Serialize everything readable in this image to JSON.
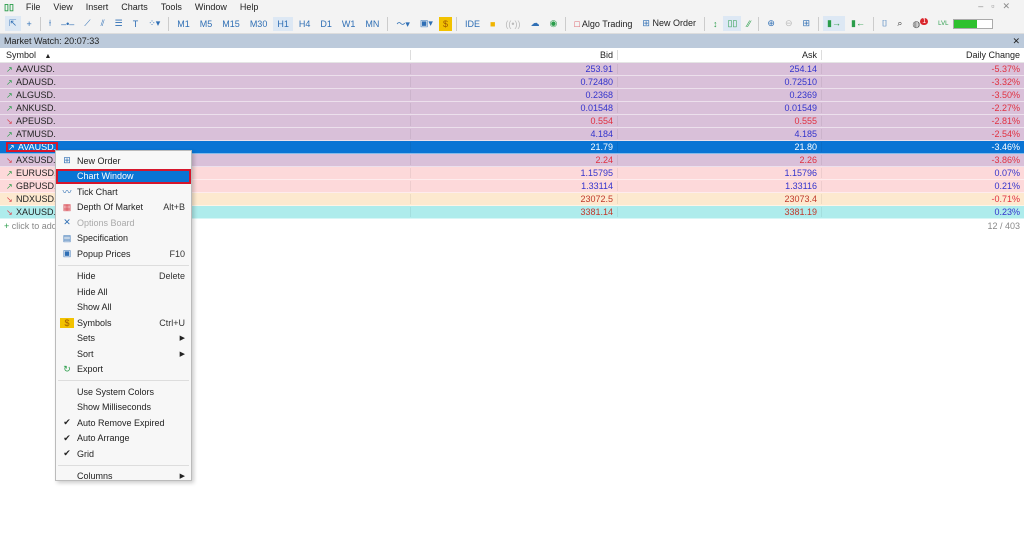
{
  "menu": [
    "File",
    "View",
    "Insert",
    "Charts",
    "Tools",
    "Window",
    "Help"
  ],
  "toolbar": {
    "timeframes": [
      "M1",
      "M5",
      "M15",
      "M30",
      "H1",
      "H4",
      "D1",
      "W1",
      "MN"
    ],
    "active_timeframe": "H1",
    "ide": "IDE",
    "algo_trading": "Algo Trading",
    "new_order": "New Order",
    "notification_count": "1",
    "lvl": "LVL"
  },
  "market_watch": {
    "title": "Market Watch: 20:07:33",
    "columns": [
      "Symbol",
      "Bid",
      "Ask",
      "Daily Change"
    ],
    "rows": [
      {
        "symbol": "AAVUSD.",
        "dir": "up",
        "bid": "253.91",
        "ask": "254.14",
        "change": "-5.37%",
        "bg": "#d9c0d9",
        "pcolor": "blue"
      },
      {
        "symbol": "ADAUSD.",
        "dir": "up",
        "bid": "0.72480",
        "ask": "0.72510",
        "change": "-3.32%",
        "bg": "#d9c0d9",
        "pcolor": "blue"
      },
      {
        "symbol": "ALGUSD.",
        "dir": "up",
        "bid": "0.2368",
        "ask": "0.2369",
        "change": "-3.50%",
        "bg": "#d9c0d9",
        "pcolor": "blue"
      },
      {
        "symbol": "ANKUSD.",
        "dir": "up",
        "bid": "0.01548",
        "ask": "0.01549",
        "change": "-2.27%",
        "bg": "#d9c0d9",
        "pcolor": "blue"
      },
      {
        "symbol": "APEUSD.",
        "dir": "down",
        "bid": "0.554",
        "ask": "0.555",
        "change": "-2.81%",
        "bg": "#d9c0d9",
        "pcolor": "red"
      },
      {
        "symbol": "ATMUSD.",
        "dir": "up",
        "bid": "4.184",
        "ask": "4.185",
        "change": "-2.54%",
        "bg": "#d9c0d9",
        "pcolor": "blue"
      },
      {
        "symbol": "AVAUSD.",
        "dir": "up",
        "bid": "21.79",
        "ask": "21.80",
        "change": "-3.46%",
        "bg": "#0a74d4",
        "pcolor": "blue",
        "selected": true
      },
      {
        "symbol": "AXSUSD.",
        "dir": "down",
        "bid": "2.24",
        "ask": "2.26",
        "change": "-3.86%",
        "bg": "#d9c0d9",
        "pcolor": "red"
      },
      {
        "symbol": "EURUSD.",
        "dir": "up",
        "bid": "1.15795",
        "ask": "1.15796",
        "change": "0.07%",
        "bg": "#fdd9da",
        "pcolor": "blue"
      },
      {
        "symbol": "GBPUSD.",
        "dir": "up",
        "bid": "1.33114",
        "ask": "1.33116",
        "change": "0.21%",
        "bg": "#fdd9da",
        "pcolor": "blue"
      },
      {
        "symbol": "NDXUSD.",
        "dir": "down",
        "bid": "23072.5",
        "ask": "23073.4",
        "change": "-0.71%",
        "bg": "#fde9cf",
        "pcolor": "brown"
      },
      {
        "symbol": "XAUUSD.",
        "dir": "down",
        "bid": "3381.14",
        "ask": "3381.19",
        "change": "0.23%",
        "bg": "#aeecec",
        "pcolor": "brown"
      }
    ],
    "add_placeholder": "click to add",
    "count": "12 / 403"
  },
  "context_menu": [
    {
      "label": "New Order",
      "icon": "new-order",
      "glyph": "⊞"
    },
    {
      "label": "Chart Window",
      "icon": "chart",
      "glyph": "",
      "highlighted": true
    },
    {
      "label": "Tick Chart",
      "icon": "tick-chart",
      "glyph": "〰"
    },
    {
      "label": "Depth Of Market",
      "icon": "depth",
      "glyph": "▦",
      "shortcut": "Alt+B"
    },
    {
      "label": "Options Board",
      "icon": "options",
      "glyph": "✕",
      "disabled": true
    },
    {
      "label": "Specification",
      "icon": "spec",
      "glyph": "▤"
    },
    {
      "label": "Popup Prices",
      "icon": "popup",
      "glyph": "▣",
      "shortcut": "F10"
    },
    {
      "sep": true
    },
    {
      "label": "Hide",
      "shortcut": "Delete"
    },
    {
      "label": "Hide All"
    },
    {
      "label": "Show All"
    },
    {
      "label": "Symbols",
      "icon": "symbols",
      "glyph": "$",
      "shortcut": "Ctrl+U"
    },
    {
      "label": "Sets",
      "submenu": true
    },
    {
      "label": "Sort",
      "submenu": true
    },
    {
      "label": "Export",
      "icon": "export",
      "glyph": "↻"
    },
    {
      "sep": true
    },
    {
      "label": "Use System Colors"
    },
    {
      "label": "Show Milliseconds"
    },
    {
      "label": "Auto Remove Expired",
      "checked": true
    },
    {
      "label": "Auto Arrange",
      "checked": true
    },
    {
      "label": "Grid",
      "checked": true
    },
    {
      "sep": true
    },
    {
      "label": "Columns",
      "submenu": true
    }
  ]
}
